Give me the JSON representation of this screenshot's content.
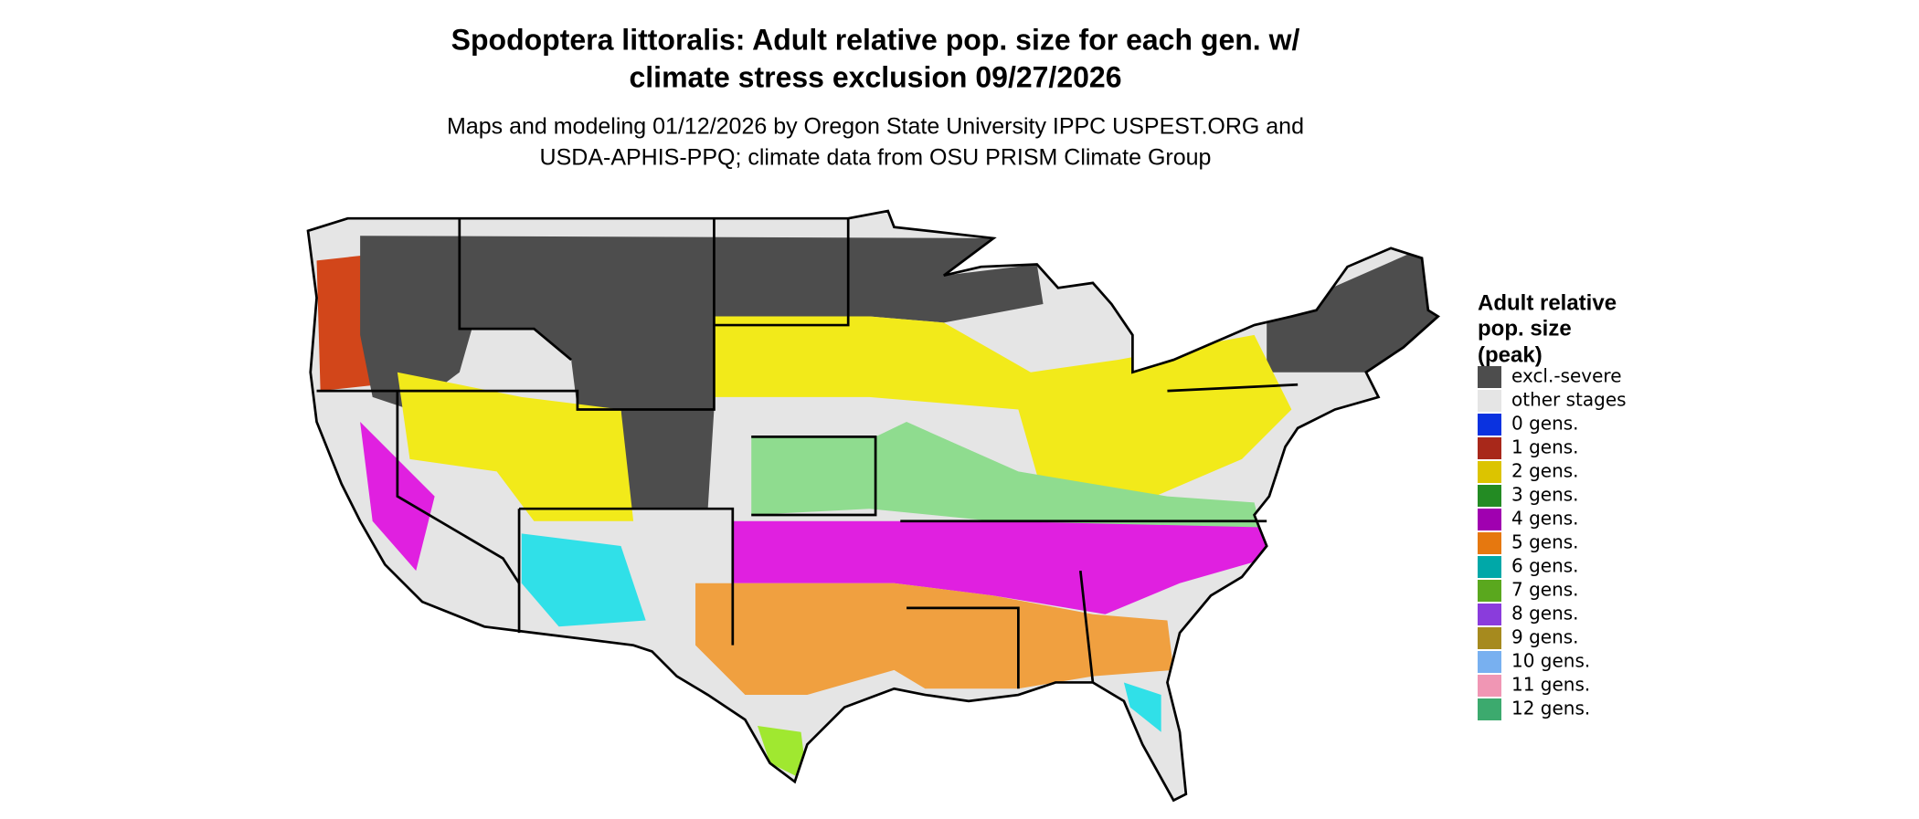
{
  "header": {
    "title_lines": [
      "Spodoptera littoralis: Adult relative pop. size for each gen. w/",
      "climate stress exclusion 09/27/2026"
    ],
    "subtitle_lines": [
      "Maps and modeling 01/12/2026 by Oregon State University IPPC USPEST.ORG and",
      "USDA-APHIS-PPQ; climate data from OSU PRISM Climate Group"
    ]
  },
  "legend": {
    "title_lines": [
      "Adult relative",
      "pop. size",
      "(peak)"
    ],
    "items": [
      {
        "label": "excl.-severe",
        "color": "#4d4d4d"
      },
      {
        "label": "other stages",
        "color": "#e5e5e5"
      },
      {
        "label": "0 gens.",
        "color": "#0a32e0"
      },
      {
        "label": "1 gens.",
        "color": "#a8281a"
      },
      {
        "label": "2 gens.",
        "color": "#dcc400"
      },
      {
        "label": "3 gens.",
        "color": "#238b23"
      },
      {
        "label": "4 gens.",
        "color": "#a000b0"
      },
      {
        "label": "5 gens.",
        "color": "#e6780f"
      },
      {
        "label": "6 gens.",
        "color": "#00a8a8"
      },
      {
        "label": "7 gens.",
        "color": "#5aa81e"
      },
      {
        "label": "8 gens.",
        "color": "#8a3cdc"
      },
      {
        "label": "9 gens.",
        "color": "#a68a1e"
      },
      {
        "label": "10 gens.",
        "color": "#78b0f0"
      },
      {
        "label": "11 gens.",
        "color": "#f096b4"
      },
      {
        "label": "12 gens.",
        "color": "#3caa6e"
      }
    ]
  }
}
